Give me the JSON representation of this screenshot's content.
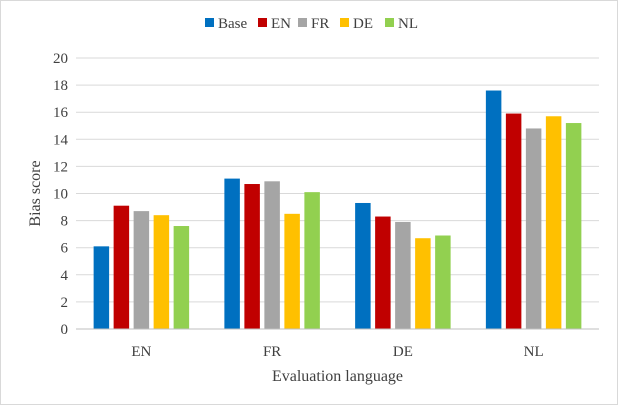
{
  "chart_data": {
    "type": "bar",
    "title": "",
    "xlabel": "Evaluation language",
    "ylabel": "Bias score",
    "categories": [
      "EN",
      "FR",
      "DE",
      "NL"
    ],
    "ylim": [
      0,
      20
    ],
    "yticks": [
      0,
      2,
      4,
      6,
      8,
      10,
      12,
      14,
      16,
      18,
      20
    ],
    "grid": true,
    "legend_position": "top",
    "series": [
      {
        "name": "Base",
        "color": "#0070C0",
        "values": [
          6.1,
          11.1,
          9.3,
          17.6
        ]
      },
      {
        "name": "EN",
        "color": "#C00000",
        "values": [
          9.1,
          10.7,
          8.3,
          15.9
        ]
      },
      {
        "name": "FR",
        "color": "#A5A5A5",
        "values": [
          8.7,
          10.9,
          7.9,
          14.8
        ]
      },
      {
        "name": "DE",
        "color": "#FFC000",
        "values": [
          8.4,
          8.5,
          6.7,
          15.7
        ]
      },
      {
        "name": "NL",
        "color": "#92D050",
        "values": [
          7.6,
          10.1,
          6.9,
          15.2
        ]
      }
    ]
  }
}
